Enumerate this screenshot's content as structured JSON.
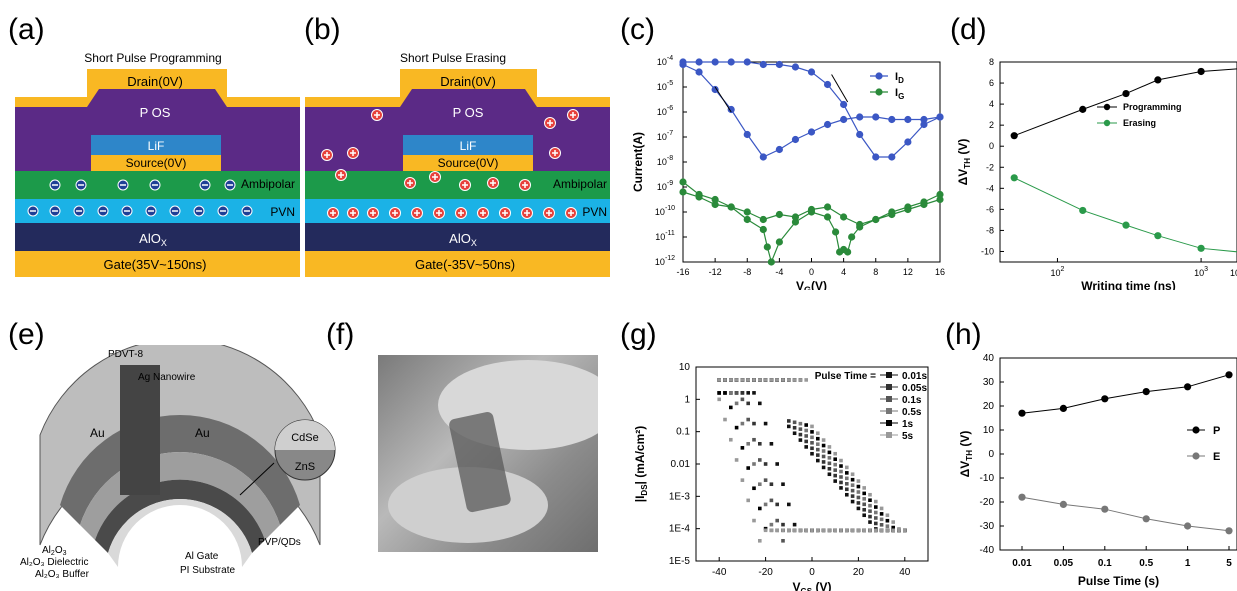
{
  "panels": {
    "a": {
      "label": "(a)",
      "title": "Short Pulse Programming",
      "drain": "Drain(0V)",
      "pos": "P OS",
      "lif": "LiF",
      "source": "Source(0V)",
      "ambipolar": "Ambipolar",
      "pvn": "PVN",
      "alox": "AlO",
      "alox_sub": "X",
      "gate": "Gate(35V~150ns)"
    },
    "b": {
      "label": "(b)",
      "title": "Short Pulse Erasing",
      "drain": "Drain(0V)",
      "pos": "P OS",
      "lif": "LiF",
      "source": "Source(0V)",
      "ambipolar": "Ambipolar",
      "pvn": "PVN",
      "alox": "AlO",
      "alox_sub": "X",
      "gate": "Gate(-35V~50ns)"
    },
    "c": {
      "label": "(c)"
    },
    "d": {
      "label": "(d)"
    },
    "e": {
      "label": "(e)",
      "labels": {
        "pdvt": "PDVT-8",
        "agnw": "Ag Nanowire",
        "au_left": "Au",
        "au_right": "Au",
        "cdse": "CdSe",
        "zns": "ZnS",
        "al2o3": "Al",
        "al2o3_sub": "2",
        "al2o3_o": "O",
        "al2o3_sub2": "3",
        "dielectric": "Al₂O₃ Dielectric",
        "buffer": "Al₂O₃ Buffer",
        "pi": "PI Substrate",
        "algate": "Al Gate",
        "pvpqd": "PVP/QDs"
      }
    },
    "f": {
      "label": "(f)"
    },
    "g": {
      "label": "(g)"
    },
    "h": {
      "label": "(h)"
    }
  },
  "colors": {
    "gold": "#f9b823",
    "purple": "#5b2a86",
    "lif": "#2e86c9",
    "green": "#1c9a4a",
    "pvn": "#1bb2e6",
    "alox": "#232a5c",
    "blue_series": "#3b57c4",
    "green_series": "#2a8a3a"
  },
  "chart_data": [
    {
      "panel": "c",
      "type": "line",
      "xlabel": "V",
      "xlabel_sub": "G",
      "xlabel_unit": "(V)",
      "ylabel": "Current(A)",
      "xlim": [
        -16,
        16
      ],
      "ylim_log": [
        -12,
        -4
      ],
      "yscale": "log",
      "x_ticks": [
        "-16",
        "-12",
        "-8",
        "-4",
        "0",
        "4",
        "8",
        "12",
        "16"
      ],
      "y_ticks": [
        "10",
        "10",
        "10",
        "10",
        "10",
        "10",
        "10",
        "10",
        "10"
      ],
      "y_tick_exps": [
        "-4",
        "-5",
        "-6",
        "-7",
        "-8",
        "-9",
        "-10",
        "-11",
        "-12"
      ],
      "series": [
        {
          "name": "I",
          "name_sub": "D",
          "color": "#3b57c4",
          "x": [
            -16,
            -14,
            -12,
            -10,
            -8,
            -6,
            -4,
            -2,
            0,
            2,
            4,
            6,
            8,
            10,
            12,
            14,
            16,
            16,
            14,
            12,
            10,
            8,
            6,
            4,
            2,
            0,
            -2,
            -4,
            -6,
            -8,
            -10,
            -12,
            -14,
            -16
          ],
          "y_exp": [
            -4.1,
            -4.4,
            -5.1,
            -5.9,
            -6.9,
            -7.8,
            -7.5,
            -7.1,
            -6.8,
            -6.5,
            -6.3,
            -6.2,
            -6.2,
            -6.3,
            -6.3,
            -6.3,
            -6.2,
            -6.2,
            -6.5,
            -7.2,
            -7.8,
            -7.8,
            -6.9,
            -5.7,
            -4.9,
            -4.4,
            -4.2,
            -4.1,
            -4.1,
            -4.0,
            -4.0,
            -4.0,
            -4.0,
            -4.0
          ]
        },
        {
          "name": "I",
          "name_sub": "G",
          "color": "#2a8a3a",
          "x": [
            -16,
            -14,
            -12,
            -10,
            -8,
            -6,
            -5.5,
            -5,
            -4,
            -2,
            0,
            2,
            3,
            3.5,
            4,
            4.5,
            5,
            6,
            8,
            10,
            12,
            14,
            16,
            16,
            14,
            12,
            10,
            8,
            6,
            4,
            2,
            0,
            -2,
            -4,
            -6,
            -8,
            -10,
            -12,
            -14,
            -16
          ],
          "y_exp": [
            -8.8,
            -9.3,
            -9.5,
            -9.8,
            -10.3,
            -10.7,
            -11.4,
            -12.0,
            -11.2,
            -10.4,
            -10.0,
            -10.2,
            -10.8,
            -11.6,
            -11.5,
            -11.6,
            -11.0,
            -10.6,
            -10.3,
            -10.1,
            -9.9,
            -9.7,
            -9.5,
            -9.3,
            -9.6,
            -9.8,
            -10.0,
            -10.3,
            -10.5,
            -10.2,
            -9.8,
            -9.9,
            -10.2,
            -10.1,
            -10.3,
            -10.0,
            -9.8,
            -9.7,
            -9.4,
            -9.2
          ]
        }
      ]
    },
    {
      "panel": "d",
      "type": "line",
      "xlabel": "Writing time (ns)",
      "ylabel": "ΔV",
      "ylabel_sub": "TH",
      "ylabel_unit": " (V)",
      "xscale": "log",
      "xlim_log": [
        1.6,
        3.25
      ],
      "ylim": [
        -11,
        8
      ],
      "y_ticks": [
        "8",
        "6",
        "4",
        "2",
        "0",
        "-2",
        "-4",
        "-6",
        "-8",
        "-10"
      ],
      "x_ticks": [
        "10",
        "10"
      ],
      "x_tick_exps": [
        "2",
        "3"
      ],
      "x_tick_last": "10",
      "series": [
        {
          "name": "Programming",
          "color": "#000000",
          "x": [
            50,
            150,
            300,
            500,
            1000,
            2000,
            4000,
            10000
          ],
          "y": [
            1.0,
            3.5,
            5.0,
            6.3,
            7.1,
            7.4,
            7.5,
            7.6
          ]
        },
        {
          "name": "Erasing",
          "color": "#2a9a4a",
          "x": [
            50,
            150,
            300,
            500,
            1000,
            2000,
            4000,
            10000
          ],
          "y": [
            -3.0,
            -6.1,
            -7.5,
            -8.5,
            -9.7,
            -10.1,
            -10.3,
            -10.5
          ]
        }
      ]
    },
    {
      "panel": "g",
      "type": "line",
      "xlabel": "V",
      "xlabel_sub": "GS",
      "xlabel_unit": " (V)",
      "ylabel": "|I",
      "ylabel_sub": "DS",
      "ylabel_unit": "| (mA/cm²)",
      "yscale": "log",
      "xlim": [
        -50,
        50
      ],
      "ylim_log": [
        -5,
        1
      ],
      "x_ticks": [
        "-40",
        "-20",
        "0",
        "20",
        "40"
      ],
      "y_ticks": [
        "10",
        "1",
        "0.1",
        "0.01",
        "1E-3",
        "1E-4",
        "1E-5"
      ],
      "legend_title": "Pulse Time =",
      "series": [
        {
          "name": "0.01s",
          "color": "#111111",
          "vth_fwd": 28,
          "vth_rev": -5
        },
        {
          "name": "0.05s",
          "color": "#333333",
          "vth_fwd": 30,
          "vth_rev": -10
        },
        {
          "name": "0.1s",
          "color": "#555555",
          "vth_fwd": 32,
          "vth_rev": -12
        },
        {
          "name": "0.5s",
          "color": "#777777",
          "vth_fwd": 34,
          "vth_rev": -15
        },
        {
          "name": "1s",
          "color": "#000000",
          "vth_fwd": 36,
          "vth_rev": -18
        },
        {
          "name": "5s",
          "color": "#999999",
          "vth_fwd": 38,
          "vth_rev": -22
        }
      ]
    },
    {
      "panel": "h",
      "type": "line",
      "xlabel": "Pulse Time (s)",
      "ylabel": "ΔV",
      "ylabel_sub": "TH",
      "ylabel_unit": " (V)",
      "categories": [
        "0.01",
        "0.05",
        "0.1",
        "0.5",
        "1",
        "5"
      ],
      "ylim": [
        -40,
        40
      ],
      "y_ticks": [
        "40",
        "30",
        "20",
        "10",
        "0",
        "-10",
        "-20",
        "-30",
        "-40"
      ],
      "series": [
        {
          "name": "P",
          "color": "#000000",
          "values": [
            17,
            19,
            23,
            26,
            28,
            33
          ]
        },
        {
          "name": "E",
          "color": "#777777",
          "values": [
            -18,
            -21,
            -23,
            -27,
            -30,
            -32
          ]
        }
      ]
    }
  ]
}
